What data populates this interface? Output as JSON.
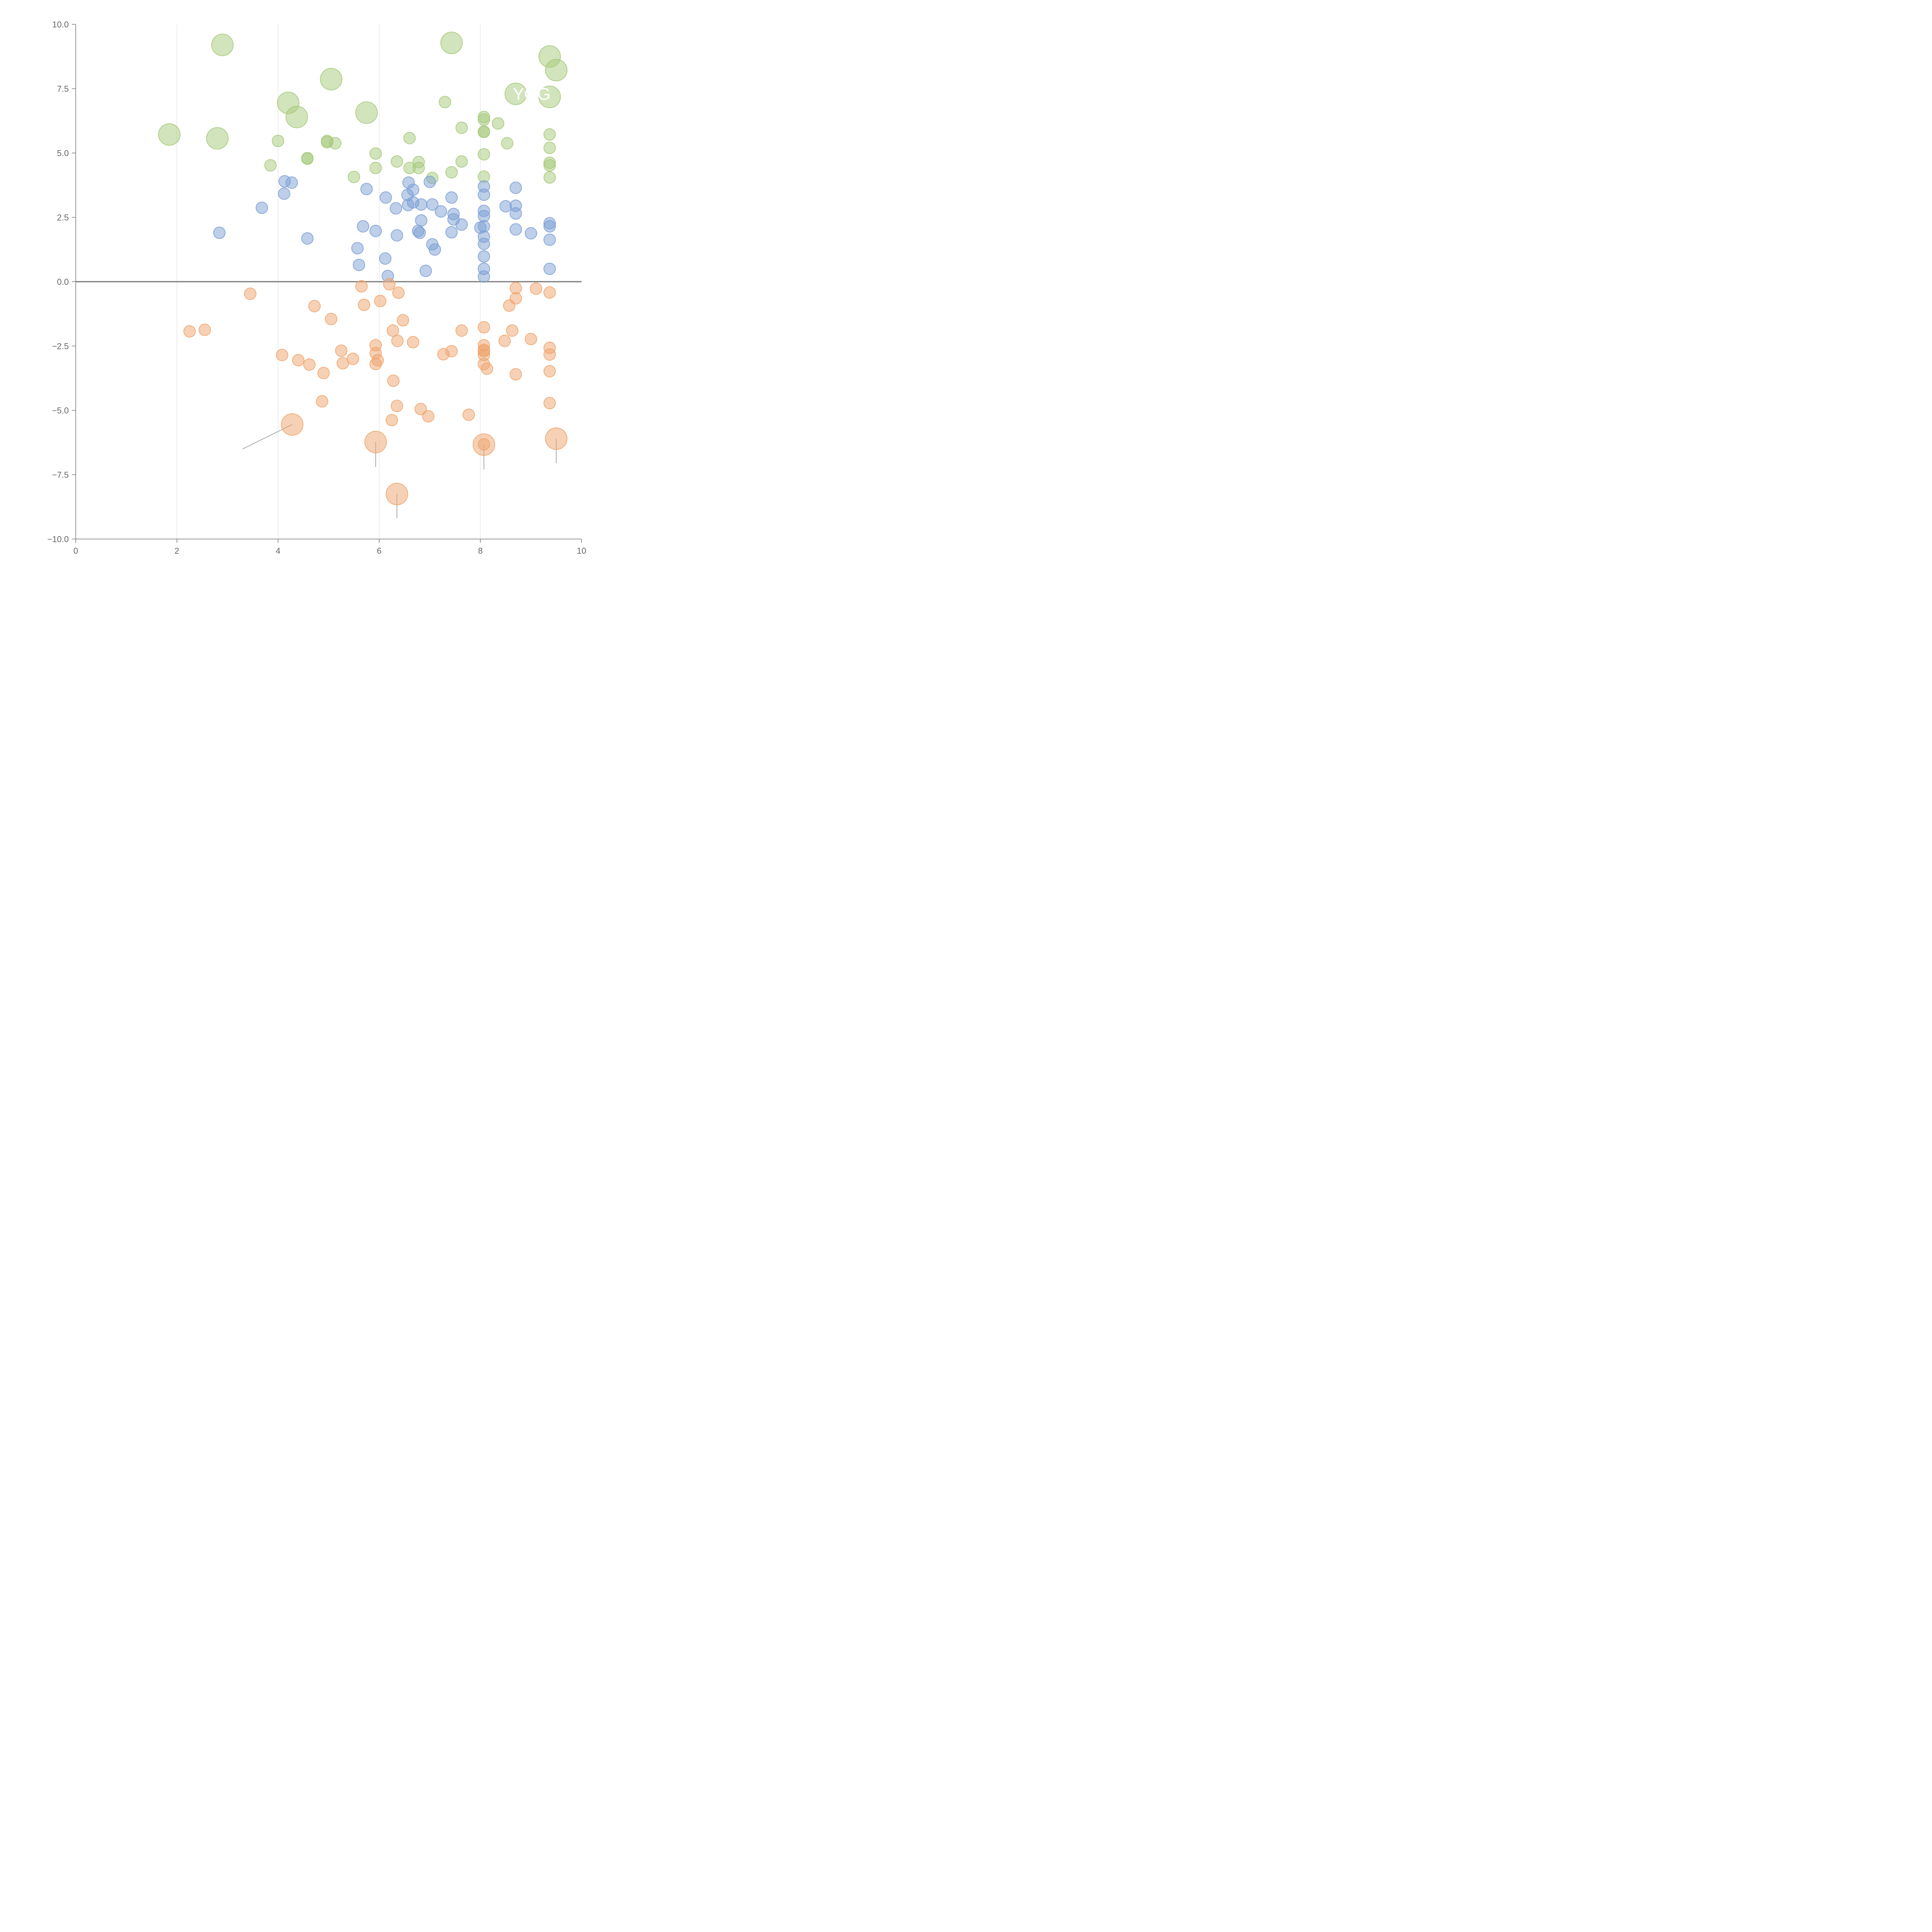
{
  "chart_data": {
    "type": "scatter",
    "title": "",
    "xlabel": "",
    "ylabel": "",
    "xlim": [
      0,
      10
    ],
    "ylim": [
      -10,
      10
    ],
    "xticks": [
      "0",
      "2",
      "4",
      "6",
      "8",
      "10"
    ],
    "yticks": [
      "10.0",
      "7.5",
      "5.0",
      "2.5",
      "0.0",
      "−2.5",
      "−5.0",
      "−7.5",
      "−10.0"
    ],
    "grid": "vertical lines at x = 2, 4, 6, 8",
    "annotation": "YOG",
    "colors": {
      "green": "#a6c97a",
      "blue": "#7c9fd4",
      "orange": "#eea46c",
      "axis": "#777777",
      "grid": "#dddddd"
    },
    "series": [
      {
        "name": "green",
        "color": "#a6c97a",
        "points": [
          [
            2.9,
            9.2,
            1
          ],
          [
            7.43,
            9.28,
            1
          ],
          [
            9.37,
            8.75,
            1
          ],
          [
            9.5,
            8.22,
            1
          ],
          [
            5.05,
            7.87,
            1
          ],
          [
            8.7,
            7.3,
            1
          ],
          [
            9.37,
            7.18,
            1
          ],
          [
            4.2,
            6.95,
            1
          ],
          [
            4.37,
            6.4,
            1
          ],
          [
            5.75,
            6.57,
            1
          ],
          [
            1.85,
            5.72,
            1
          ],
          [
            2.8,
            5.57,
            1
          ],
          [
            7.3,
            6.98,
            0
          ],
          [
            8.07,
            6.4,
            0
          ],
          [
            8.07,
            6.3,
            0
          ],
          [
            8.35,
            6.15,
            0
          ],
          [
            7.63,
            5.98,
            0
          ],
          [
            8.07,
            5.83,
            0
          ],
          [
            8.07,
            5.82,
            0
          ],
          [
            9.37,
            5.72,
            0
          ],
          [
            6.6,
            5.58,
            0
          ],
          [
            4.0,
            5.47,
            0
          ],
          [
            4.97,
            5.47,
            0
          ],
          [
            4.97,
            5.42,
            0
          ],
          [
            5.13,
            5.38,
            0
          ],
          [
            8.53,
            5.38,
            0
          ],
          [
            9.37,
            5.2,
            0
          ],
          [
            5.93,
            4.98,
            0
          ],
          [
            8.07,
            4.95,
            0
          ],
          [
            4.58,
            4.78,
            0
          ],
          [
            4.58,
            4.8,
            0
          ],
          [
            6.35,
            4.67,
            0
          ],
          [
            6.78,
            4.65,
            0
          ],
          [
            7.63,
            4.67,
            0
          ],
          [
            9.37,
            4.62,
            0
          ],
          [
            9.37,
            4.52,
            0
          ],
          [
            3.85,
            4.52,
            0
          ],
          [
            5.93,
            4.42,
            0
          ],
          [
            6.6,
            4.42,
            0
          ],
          [
            6.78,
            4.42,
            0
          ],
          [
            7.43,
            4.25,
            0
          ],
          [
            5.5,
            4.07,
            0
          ],
          [
            7.05,
            4.03,
            0
          ],
          [
            8.07,
            4.08,
            0
          ],
          [
            9.37,
            4.05,
            0
          ]
        ]
      },
      {
        "name": "blue",
        "color": "#7c9fd4",
        "points": [
          [
            4.13,
            3.9,
            0
          ],
          [
            4.27,
            3.85,
            0
          ],
          [
            4.12,
            3.42,
            0
          ],
          [
            3.68,
            2.87,
            0
          ],
          [
            2.84,
            1.9,
            0
          ],
          [
            4.58,
            1.68,
            0
          ],
          [
            5.75,
            3.6,
            0
          ],
          [
            6.58,
            3.85,
            0
          ],
          [
            6.67,
            3.57,
            0
          ],
          [
            6.56,
            3.37,
            0
          ],
          [
            6.67,
            3.08,
            0
          ],
          [
            6.13,
            3.27,
            0
          ],
          [
            6.57,
            2.98,
            0
          ],
          [
            6.83,
            3.0,
            0
          ],
          [
            7.0,
            3.88,
            0
          ],
          [
            7.05,
            3.0,
            0
          ],
          [
            7.43,
            3.27,
            0
          ],
          [
            6.33,
            2.85,
            0
          ],
          [
            7.22,
            2.73,
            0
          ],
          [
            7.47,
            2.63,
            0
          ],
          [
            7.47,
            2.42,
            0
          ],
          [
            6.83,
            2.38,
            0
          ],
          [
            7.63,
            2.22,
            0
          ],
          [
            5.68,
            2.15,
            0
          ],
          [
            5.93,
            1.97,
            0
          ],
          [
            6.77,
            1.97,
            0
          ],
          [
            6.8,
            1.9,
            0
          ],
          [
            7.43,
            1.92,
            0
          ],
          [
            6.35,
            1.8,
            0
          ],
          [
            7.05,
            1.45,
            0
          ],
          [
            7.1,
            1.25,
            0
          ],
          [
            5.57,
            1.3,
            0
          ],
          [
            6.12,
            0.9,
            0
          ],
          [
            5.6,
            0.65,
            0
          ],
          [
            6.17,
            0.22,
            0
          ],
          [
            6.92,
            0.42,
            0
          ],
          [
            8.07,
            3.7,
            0
          ],
          [
            8.07,
            3.38,
            0
          ],
          [
            8.07,
            2.75,
            0
          ],
          [
            8.07,
            2.55,
            0
          ],
          [
            8.0,
            2.1,
            0
          ],
          [
            8.07,
            2.15,
            0
          ],
          [
            8.07,
            1.75,
            0
          ],
          [
            8.07,
            1.47,
            0
          ],
          [
            8.07,
            0.98,
            0
          ],
          [
            8.07,
            0.5,
            0
          ],
          [
            8.07,
            0.2,
            0
          ],
          [
            8.5,
            2.93,
            0
          ],
          [
            8.7,
            3.65,
            0
          ],
          [
            8.7,
            2.95,
            0
          ],
          [
            8.7,
            2.65,
            0
          ],
          [
            8.7,
            2.03,
            0
          ],
          [
            9.0,
            1.88,
            0
          ],
          [
            9.37,
            2.27,
            0
          ],
          [
            9.37,
            2.15,
            0
          ],
          [
            9.37,
            1.63,
            0
          ],
          [
            9.37,
            0.5,
            0
          ]
        ]
      },
      {
        "name": "orange",
        "color": "#eea46c",
        "points": [
          [
            3.45,
            -0.47,
            0
          ],
          [
            2.25,
            -1.93,
            0
          ],
          [
            2.55,
            -1.87,
            0
          ],
          [
            4.08,
            -2.85,
            0
          ],
          [
            4.4,
            -3.05,
            0
          ],
          [
            4.62,
            -3.22,
            0
          ],
          [
            4.72,
            -0.95,
            0
          ],
          [
            4.9,
            -3.55,
            0
          ],
          [
            4.87,
            -4.65,
            0
          ],
          [
            5.05,
            -1.45,
            0
          ],
          [
            5.25,
            -2.68,
            0
          ],
          [
            5.28,
            -3.17,
            0
          ],
          [
            5.48,
            -3.0,
            0
          ],
          [
            5.65,
            -0.18,
            0
          ],
          [
            5.7,
            -0.9,
            0
          ],
          [
            6.02,
            -0.75,
            0
          ],
          [
            6.2,
            -0.1,
            0
          ],
          [
            6.38,
            -0.43,
            0
          ],
          [
            6.47,
            -1.5,
            0
          ],
          [
            6.27,
            -1.9,
            0
          ],
          [
            6.36,
            -2.3,
            0
          ],
          [
            6.67,
            -2.35,
            0
          ],
          [
            5.93,
            -2.47,
            0
          ],
          [
            5.93,
            -2.78,
            0
          ],
          [
            5.97,
            -3.05,
            0
          ],
          [
            5.93,
            -3.2,
            0
          ],
          [
            6.28,
            -3.85,
            0
          ],
          [
            6.35,
            -4.83,
            0
          ],
          [
            6.25,
            -5.38,
            0
          ],
          [
            6.82,
            -4.95,
            0
          ],
          [
            6.97,
            -5.23,
            0
          ],
          [
            7.27,
            -2.82,
            0
          ],
          [
            7.43,
            -2.7,
            0
          ],
          [
            7.63,
            -1.9,
            0
          ],
          [
            7.77,
            -5.17,
            0
          ],
          [
            8.07,
            -1.77,
            0
          ],
          [
            8.07,
            -2.47,
            0
          ],
          [
            8.07,
            -2.65,
            0
          ],
          [
            8.07,
            -2.7,
            0
          ],
          [
            8.07,
            -2.85,
            0
          ],
          [
            8.07,
            -3.2,
            0
          ],
          [
            8.13,
            -3.38,
            0
          ],
          [
            8.07,
            -6.32,
            0
          ],
          [
            8.48,
            -2.3,
            0
          ],
          [
            8.57,
            -0.93,
            0
          ],
          [
            8.63,
            -1.9,
            0
          ],
          [
            8.7,
            -0.25,
            0
          ],
          [
            8.7,
            -0.65,
            0
          ],
          [
            8.7,
            -3.6,
            0
          ],
          [
            9.0,
            -2.23,
            0
          ],
          [
            9.1,
            -0.27,
            0
          ],
          [
            9.37,
            -0.42,
            0
          ],
          [
            9.37,
            -2.57,
            0
          ],
          [
            9.37,
            -2.83,
            0
          ],
          [
            9.37,
            -3.48,
            0
          ],
          [
            9.37,
            -4.72,
            0
          ],
          [
            4.28,
            -5.55,
            1
          ],
          [
            5.93,
            -6.23,
            1
          ],
          [
            8.07,
            -6.33,
            1
          ],
          [
            9.5,
            -6.1,
            1
          ],
          [
            6.35,
            -8.25,
            1
          ]
        ]
      }
    ],
    "leader_lines": [
      [
        [
          4.28,
          -5.55
        ],
        [
          3.3,
          -6.5
        ]
      ],
      [
        [
          5.93,
          -6.23
        ],
        [
          5.93,
          -7.2
        ]
      ],
      [
        [
          8.07,
          -6.33
        ],
        [
          8.07,
          -7.3
        ]
      ],
      [
        [
          9.5,
          -6.1
        ],
        [
          9.5,
          -7.05
        ]
      ],
      [
        [
          6.35,
          -8.25
        ],
        [
          6.35,
          -9.2
        ]
      ],
      [
        [
          2.9,
          9.2
        ],
        [
          3.1,
          9.25
        ]
      ],
      [
        [
          5.05,
          7.87
        ],
        [
          5.25,
          8.15
        ]
      ],
      [
        [
          4.2,
          6.95
        ],
        [
          4.3,
          7.15
        ]
      ],
      [
        [
          4.37,
          6.4
        ],
        [
          4.47,
          6.15
        ]
      ],
      [
        [
          5.75,
          6.57
        ],
        [
          5.95,
          6.65
        ]
      ],
      [
        [
          7.43,
          9.28
        ],
        [
          7.65,
          9.33
        ]
      ],
      [
        [
          9.37,
          8.75
        ],
        [
          9.42,
          9.1
        ]
      ],
      [
        [
          9.5,
          8.22
        ],
        [
          9.44,
          8.8
        ]
      ],
      [
        [
          9.37,
          7.18
        ],
        [
          9.28,
          6.9
        ]
      ]
    ]
  }
}
